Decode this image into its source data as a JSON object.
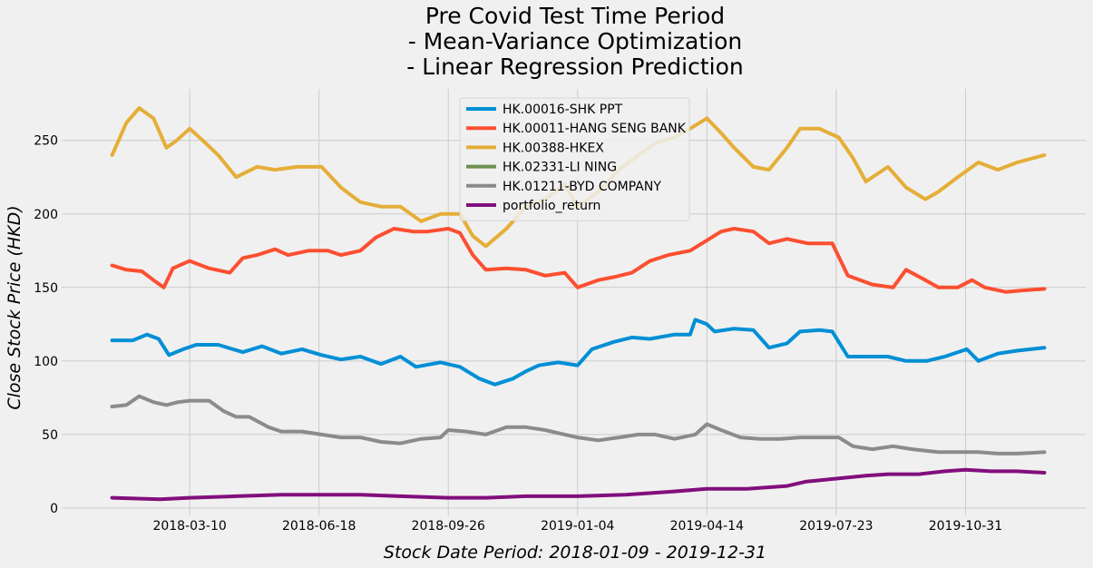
{
  "chart_data": {
    "type": "line",
    "title": [
      "Pre Covid Test Time Period",
      "- Mean-Variance Optimization",
      "- Linear Regression Prediction"
    ],
    "xlabel": "Stock Date Period: 2018-01-09 - 2019-12-31",
    "ylabel": "Close Stock Price (HKD)",
    "x_range": [
      "2018-01-09",
      "2019-12-31"
    ],
    "xlim": [
      "2017-12-01",
      "2020-02-01"
    ],
    "ylim": [
      -5,
      285
    ],
    "x_ticks": [
      "2018-03-10",
      "2018-06-18",
      "2018-09-26",
      "2019-01-04",
      "2019-04-14",
      "2019-07-23",
      "2019-10-31"
    ],
    "y_ticks": [
      0,
      50,
      100,
      150,
      200,
      250
    ],
    "grid": true,
    "legend_position": "top-center",
    "series": [
      {
        "name": "HK.00016-SHK PPT",
        "color": "#008fd5",
        "points": [
          [
            "2018-01-09",
            114
          ],
          [
            "2018-01-25",
            114
          ],
          [
            "2018-02-05",
            118
          ],
          [
            "2018-02-14",
            115
          ],
          [
            "2018-02-22",
            104
          ],
          [
            "2018-03-05",
            108
          ],
          [
            "2018-03-15",
            111
          ],
          [
            "2018-04-01",
            111
          ],
          [
            "2018-04-20",
            106
          ],
          [
            "2018-05-05",
            110
          ],
          [
            "2018-05-20",
            105
          ],
          [
            "2018-06-05",
            108
          ],
          [
            "2018-06-20",
            104
          ],
          [
            "2018-07-05",
            101
          ],
          [
            "2018-07-20",
            103
          ],
          [
            "2018-08-05",
            98
          ],
          [
            "2018-08-20",
            103
          ],
          [
            "2018-09-01",
            96
          ],
          [
            "2018-09-20",
            99
          ],
          [
            "2018-10-05",
            96
          ],
          [
            "2018-10-20",
            88
          ],
          [
            "2018-11-01",
            84
          ],
          [
            "2018-11-15",
            88
          ],
          [
            "2018-11-25",
            93
          ],
          [
            "2018-12-05",
            97
          ],
          [
            "2018-12-20",
            99
          ],
          [
            "2019-01-04",
            97
          ],
          [
            "2019-01-15",
            108
          ],
          [
            "2019-02-01",
            113
          ],
          [
            "2019-02-15",
            116
          ],
          [
            "2019-03-01",
            115
          ],
          [
            "2019-03-20",
            118
          ],
          [
            "2019-04-01",
            118
          ],
          [
            "2019-04-05",
            128
          ],
          [
            "2019-04-14",
            125
          ],
          [
            "2019-04-20",
            120
          ],
          [
            "2019-05-05",
            122
          ],
          [
            "2019-05-20",
            121
          ],
          [
            "2019-06-01",
            109
          ],
          [
            "2019-06-15",
            112
          ],
          [
            "2019-06-25",
            120
          ],
          [
            "2019-07-10",
            121
          ],
          [
            "2019-07-20",
            120
          ],
          [
            "2019-08-01",
            103
          ],
          [
            "2019-08-15",
            103
          ],
          [
            "2019-09-01",
            103
          ],
          [
            "2019-09-15",
            100
          ],
          [
            "2019-10-01",
            100
          ],
          [
            "2019-10-15",
            103
          ],
          [
            "2019-11-01",
            108
          ],
          [
            "2019-11-10",
            100
          ],
          [
            "2019-11-25",
            105
          ],
          [
            "2019-12-10",
            107
          ],
          [
            "2019-12-31",
            109
          ]
        ]
      },
      {
        "name": "HK.00011-HANG SENG BANK",
        "color": "#fc4f30",
        "points": [
          [
            "2018-01-09",
            165
          ],
          [
            "2018-01-20",
            162
          ],
          [
            "2018-02-01",
            161
          ],
          [
            "2018-02-10",
            155
          ],
          [
            "2018-02-18",
            150
          ],
          [
            "2018-02-25",
            163
          ],
          [
            "2018-03-10",
            168
          ],
          [
            "2018-03-25",
            163
          ],
          [
            "2018-04-10",
            160
          ],
          [
            "2018-04-20",
            170
          ],
          [
            "2018-05-01",
            172
          ],
          [
            "2018-05-15",
            176
          ],
          [
            "2018-05-25",
            172
          ],
          [
            "2018-06-10",
            175
          ],
          [
            "2018-06-25",
            175
          ],
          [
            "2018-07-05",
            172
          ],
          [
            "2018-07-20",
            175
          ],
          [
            "2018-08-01",
            184
          ],
          [
            "2018-08-15",
            190
          ],
          [
            "2018-08-30",
            188
          ],
          [
            "2018-09-10",
            188
          ],
          [
            "2018-09-26",
            190
          ],
          [
            "2018-10-05",
            187
          ],
          [
            "2018-10-15",
            172
          ],
          [
            "2018-10-25",
            162
          ],
          [
            "2018-11-10",
            163
          ],
          [
            "2018-11-25",
            162
          ],
          [
            "2018-12-10",
            158
          ],
          [
            "2018-12-25",
            160
          ],
          [
            "2019-01-04",
            150
          ],
          [
            "2019-01-20",
            155
          ],
          [
            "2019-02-01",
            157
          ],
          [
            "2019-02-15",
            160
          ],
          [
            "2019-03-01",
            168
          ],
          [
            "2019-03-15",
            172
          ],
          [
            "2019-04-01",
            175
          ],
          [
            "2019-04-14",
            182
          ],
          [
            "2019-04-25",
            188
          ],
          [
            "2019-05-05",
            190
          ],
          [
            "2019-05-20",
            188
          ],
          [
            "2019-06-01",
            180
          ],
          [
            "2019-06-15",
            183
          ],
          [
            "2019-07-01",
            180
          ],
          [
            "2019-07-20",
            180
          ],
          [
            "2019-08-01",
            158
          ],
          [
            "2019-08-20",
            152
          ],
          [
            "2019-09-05",
            150
          ],
          [
            "2019-09-15",
            162
          ],
          [
            "2019-09-30",
            155
          ],
          [
            "2019-10-10",
            150
          ],
          [
            "2019-10-25",
            150
          ],
          [
            "2019-11-05",
            155
          ],
          [
            "2019-11-15",
            150
          ],
          [
            "2019-12-01",
            147
          ],
          [
            "2019-12-15",
            148
          ],
          [
            "2019-12-31",
            149
          ]
        ]
      },
      {
        "name": "HK.00388-HKEX",
        "color": "#e5ae38",
        "points": [
          [
            "2018-01-09",
            240
          ],
          [
            "2018-01-20",
            262
          ],
          [
            "2018-01-30",
            272
          ],
          [
            "2018-02-10",
            265
          ],
          [
            "2018-02-20",
            245
          ],
          [
            "2018-02-28",
            250
          ],
          [
            "2018-03-10",
            258
          ],
          [
            "2018-03-20",
            250
          ],
          [
            "2018-04-01",
            240
          ],
          [
            "2018-04-15",
            225
          ],
          [
            "2018-05-01",
            232
          ],
          [
            "2018-05-15",
            230
          ],
          [
            "2018-06-01",
            232
          ],
          [
            "2018-06-20",
            232
          ],
          [
            "2018-07-05",
            218
          ],
          [
            "2018-07-20",
            208
          ],
          [
            "2018-08-05",
            205
          ],
          [
            "2018-08-20",
            205
          ],
          [
            "2018-09-05",
            195
          ],
          [
            "2018-09-20",
            200
          ],
          [
            "2018-10-05",
            200
          ],
          [
            "2018-10-15",
            185
          ],
          [
            "2018-10-25",
            178
          ],
          [
            "2018-11-10",
            190
          ],
          [
            "2018-11-25",
            205
          ],
          [
            "2018-12-10",
            210
          ],
          [
            "2018-12-25",
            220
          ],
          [
            "2019-01-04",
            205
          ],
          [
            "2019-01-20",
            215
          ],
          [
            "2019-02-05",
            230
          ],
          [
            "2019-02-20",
            240
          ],
          [
            "2019-03-05",
            248
          ],
          [
            "2019-03-20",
            252
          ],
          [
            "2019-04-01",
            258
          ],
          [
            "2019-04-14",
            265
          ],
          [
            "2019-04-25",
            255
          ],
          [
            "2019-05-05",
            245
          ],
          [
            "2019-05-20",
            232
          ],
          [
            "2019-06-01",
            230
          ],
          [
            "2019-06-15",
            245
          ],
          [
            "2019-06-25",
            258
          ],
          [
            "2019-07-10",
            258
          ],
          [
            "2019-07-25",
            252
          ],
          [
            "2019-08-05",
            238
          ],
          [
            "2019-08-15",
            222
          ],
          [
            "2019-09-01",
            232
          ],
          [
            "2019-09-15",
            218
          ],
          [
            "2019-09-30",
            210
          ],
          [
            "2019-10-10",
            215
          ],
          [
            "2019-10-25",
            225
          ],
          [
            "2019-11-10",
            235
          ],
          [
            "2019-11-25",
            230
          ],
          [
            "2019-12-10",
            235
          ],
          [
            "2019-12-31",
            240
          ]
        ]
      },
      {
        "name": "HK.02331-LI NING",
        "color": "#6d904f",
        "points": []
      },
      {
        "name": "HK.01211-BYD COMPANY",
        "color": "#8b8b8b",
        "points": [
          [
            "2018-01-09",
            69
          ],
          [
            "2018-01-20",
            70
          ],
          [
            "2018-01-30",
            76
          ],
          [
            "2018-02-10",
            72
          ],
          [
            "2018-02-20",
            70
          ],
          [
            "2018-03-01",
            72
          ],
          [
            "2018-03-10",
            73
          ],
          [
            "2018-03-25",
            73
          ],
          [
            "2018-04-05",
            66
          ],
          [
            "2018-04-15",
            62
          ],
          [
            "2018-04-25",
            62
          ],
          [
            "2018-05-10",
            55
          ],
          [
            "2018-05-20",
            52
          ],
          [
            "2018-06-05",
            52
          ],
          [
            "2018-06-20",
            50
          ],
          [
            "2018-07-05",
            48
          ],
          [
            "2018-07-20",
            48
          ],
          [
            "2018-08-05",
            45
          ],
          [
            "2018-08-20",
            44
          ],
          [
            "2018-09-05",
            47
          ],
          [
            "2018-09-20",
            48
          ],
          [
            "2018-09-26",
            53
          ],
          [
            "2018-10-10",
            52
          ],
          [
            "2018-10-25",
            50
          ],
          [
            "2018-11-10",
            55
          ],
          [
            "2018-11-25",
            55
          ],
          [
            "2018-12-10",
            53
          ],
          [
            "2018-12-25",
            50
          ],
          [
            "2019-01-04",
            48
          ],
          [
            "2019-01-20",
            46
          ],
          [
            "2019-02-05",
            48
          ],
          [
            "2019-02-20",
            50
          ],
          [
            "2019-03-05",
            50
          ],
          [
            "2019-03-20",
            47
          ],
          [
            "2019-04-05",
            50
          ],
          [
            "2019-04-14",
            57
          ],
          [
            "2019-04-25",
            53
          ],
          [
            "2019-05-10",
            48
          ],
          [
            "2019-05-25",
            47
          ],
          [
            "2019-06-10",
            47
          ],
          [
            "2019-06-25",
            48
          ],
          [
            "2019-07-10",
            48
          ],
          [
            "2019-07-25",
            48
          ],
          [
            "2019-08-05",
            42
          ],
          [
            "2019-08-20",
            40
          ],
          [
            "2019-09-05",
            42
          ],
          [
            "2019-09-20",
            40
          ],
          [
            "2019-10-10",
            38
          ],
          [
            "2019-10-25",
            38
          ],
          [
            "2019-11-10",
            38
          ],
          [
            "2019-11-25",
            37
          ],
          [
            "2019-12-10",
            37
          ],
          [
            "2019-12-31",
            38
          ]
        ]
      },
      {
        "name": "portfolio_return",
        "color": "#810f7c",
        "points": [
          [
            "2018-01-09",
            7
          ],
          [
            "2018-02-15",
            6
          ],
          [
            "2018-03-10",
            7
          ],
          [
            "2018-04-15",
            8
          ],
          [
            "2018-05-20",
            9
          ],
          [
            "2018-06-18",
            9
          ],
          [
            "2018-07-20",
            9
          ],
          [
            "2018-08-20",
            8
          ],
          [
            "2018-09-26",
            7
          ],
          [
            "2018-10-25",
            7
          ],
          [
            "2018-11-25",
            8
          ],
          [
            "2019-01-04",
            8
          ],
          [
            "2019-02-10",
            9
          ],
          [
            "2019-03-15",
            11
          ],
          [
            "2019-04-14",
            13
          ],
          [
            "2019-05-15",
            13
          ],
          [
            "2019-06-15",
            15
          ],
          [
            "2019-06-30",
            18
          ],
          [
            "2019-07-23",
            20
          ],
          [
            "2019-08-15",
            22
          ],
          [
            "2019-09-01",
            23
          ],
          [
            "2019-09-25",
            23
          ],
          [
            "2019-10-15",
            25
          ],
          [
            "2019-10-31",
            26
          ],
          [
            "2019-11-20",
            25
          ],
          [
            "2019-12-10",
            25
          ],
          [
            "2019-12-31",
            24
          ]
        ]
      }
    ]
  }
}
